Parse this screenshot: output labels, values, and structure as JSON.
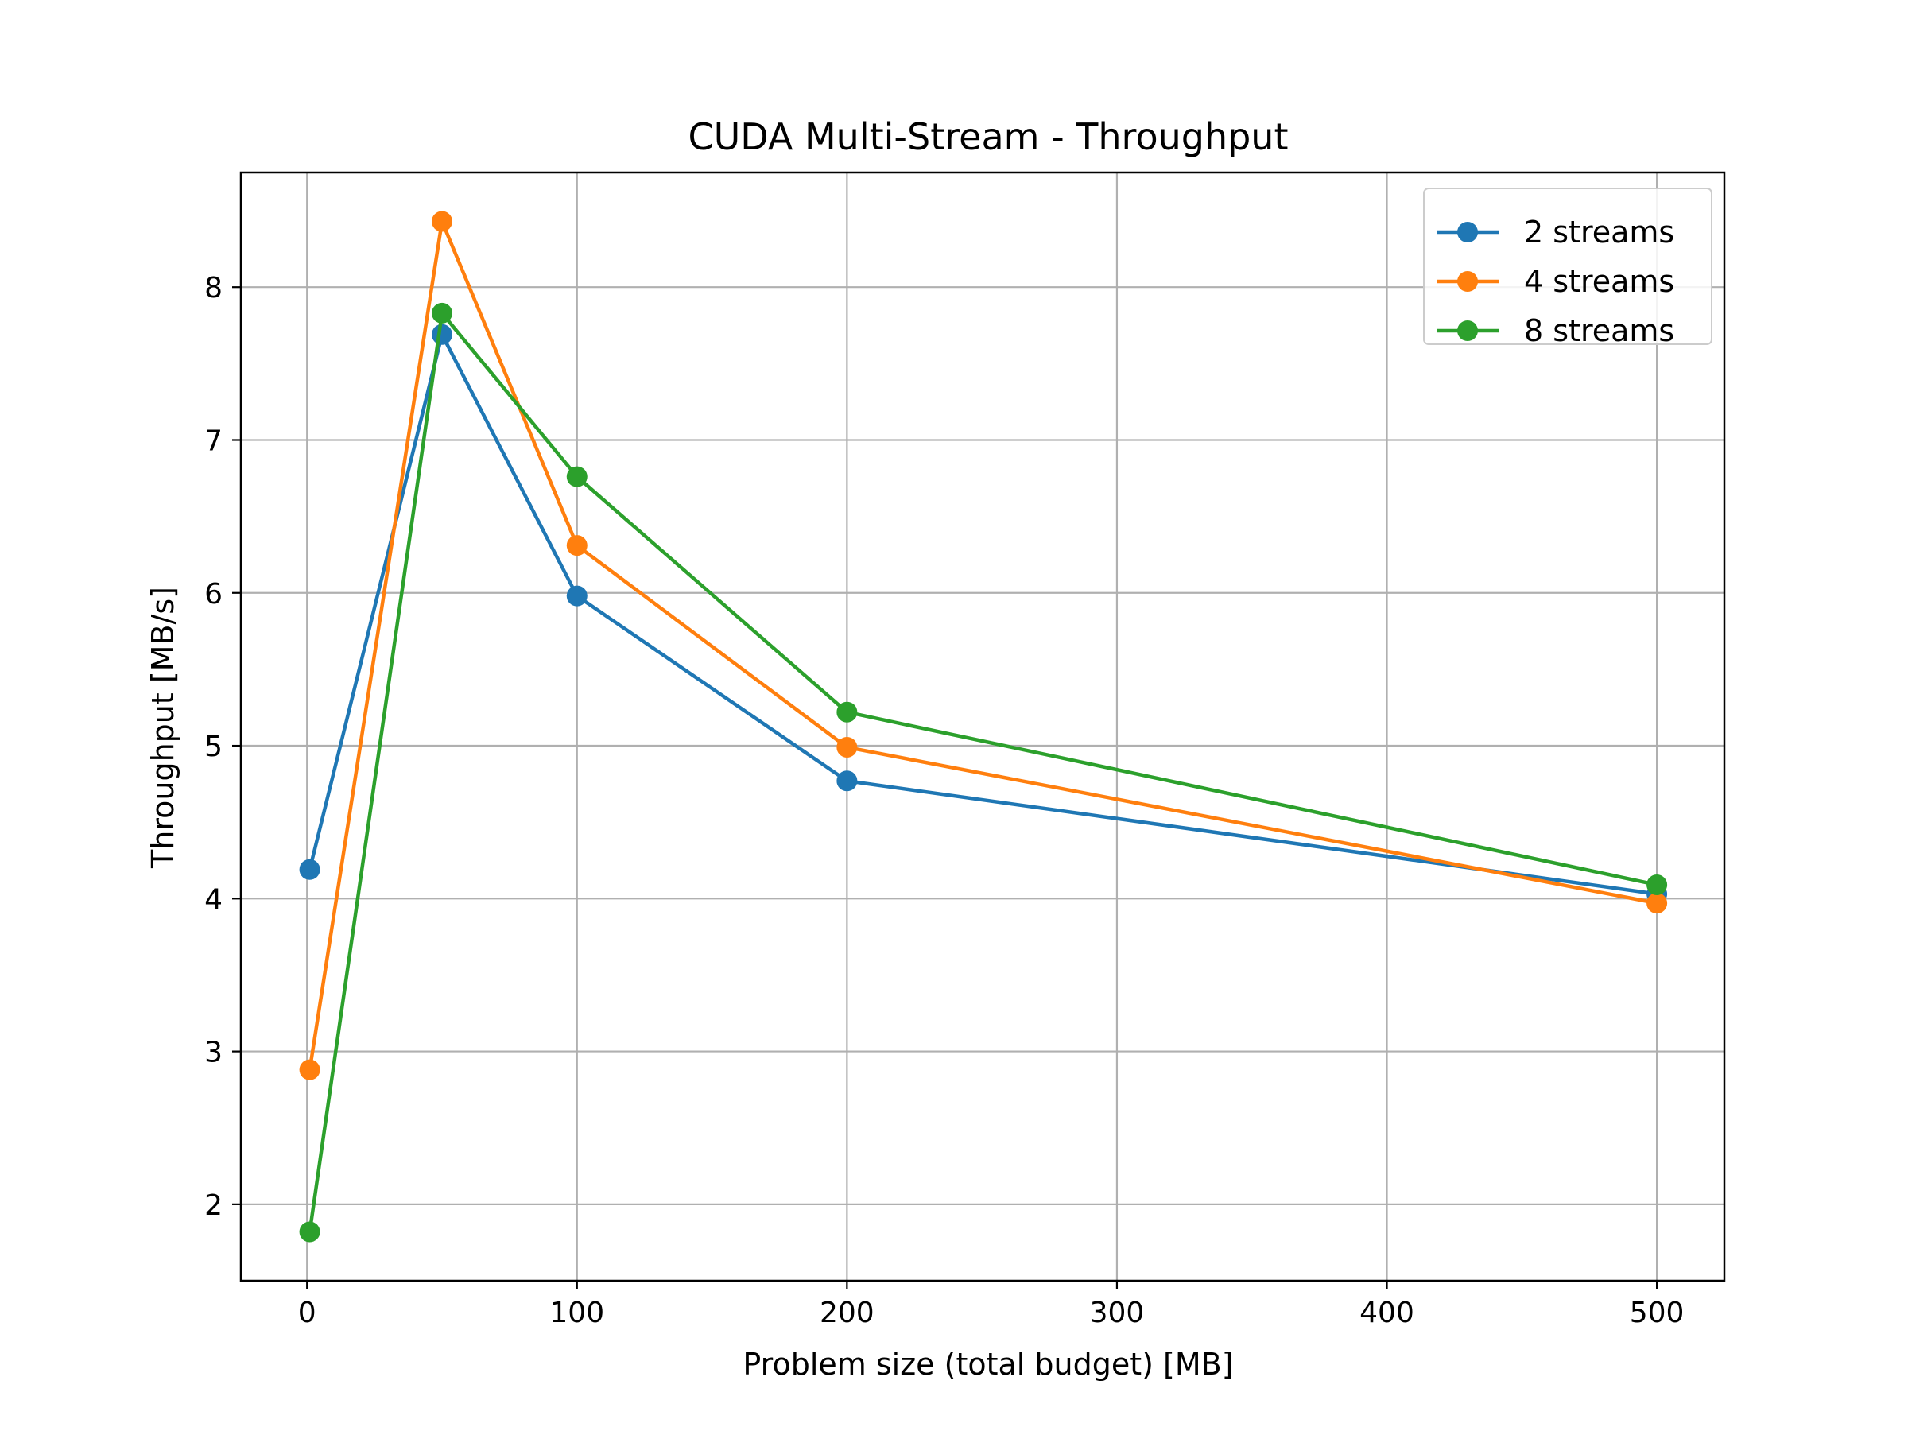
{
  "chart_data": {
    "type": "line",
    "title": "CUDA Multi-Stream - Throughput",
    "xlabel": "Problem size (total budget) [MB]",
    "ylabel": "Throughput [MB/s]",
    "xlim": [
      -24.5,
      525
    ],
    "ylim": [
      1.5,
      8.75
    ],
    "xticks": [
      0,
      100,
      200,
      300,
      400,
      500
    ],
    "yticks": [
      2,
      3,
      4,
      5,
      6,
      7,
      8
    ],
    "grid": true,
    "legend_position": "top-right",
    "series": [
      {
        "name": "2 streams",
        "color": "#1f77b4",
        "marker": "circle",
        "points": [
          [
            1,
            4.19
          ],
          [
            50,
            7.69
          ],
          [
            100,
            5.98
          ],
          [
            200,
            4.77
          ],
          [
            500,
            4.03
          ]
        ]
      },
      {
        "name": "4 streams",
        "color": "#ff7f0e",
        "marker": "circle",
        "points": [
          [
            1,
            2.88
          ],
          [
            50,
            8.43
          ],
          [
            100,
            6.31
          ],
          [
            200,
            4.99
          ],
          [
            500,
            3.97
          ]
        ]
      },
      {
        "name": "8 streams",
        "color": "#2ca02c",
        "marker": "circle",
        "points": [
          [
            1,
            1.82
          ],
          [
            50,
            7.83
          ],
          [
            100,
            6.76
          ],
          [
            200,
            5.22
          ],
          [
            500,
            4.09
          ]
        ]
      }
    ]
  }
}
